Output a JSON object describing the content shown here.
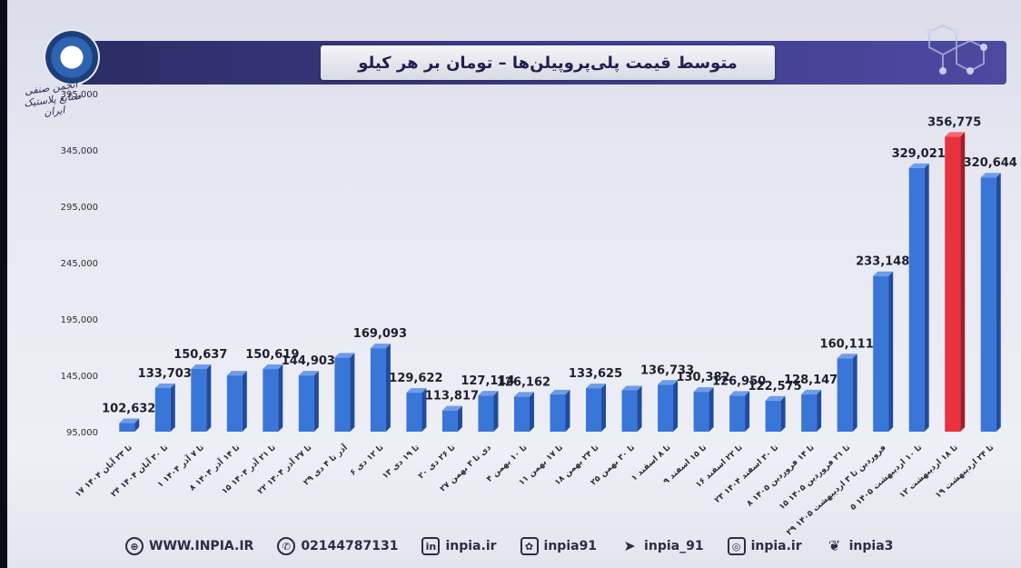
{
  "header": {
    "title": "متوسط قیمت پلی‌پروپیلن‌ها – تومان بر هر کیلو",
    "logo_text": "انجمن صنفی صنایع پلاستیک ایران"
  },
  "chart_data": {
    "type": "bar",
    "title": "متوسط قیمت پلی‌پروپیلن‌ها – تومان بر هر کیلو",
    "xlabel": "",
    "ylabel": "",
    "ylim": [
      95000,
      395000
    ],
    "yticks": [
      "395,000",
      "345,000",
      "295,000",
      "245,000",
      "195,000",
      "145,000",
      "95,000"
    ],
    "ytick_values": [
      395000,
      345000,
      295000,
      245000,
      195000,
      145000,
      95000
    ],
    "grid": false,
    "categories": [
      "۱۷ تا ۲۳ آبان ۱۴۰۴",
      "۲۴ تا ۳۰ آبان ۱۴۰۴",
      "۱ تا ۷ آذر ۱۴۰۴",
      "۸ تا ۱۴ آذر ۱۴۰۴",
      "۱۵ تا ۲۱ آذر ۱۴۰۴",
      "۲۲ تا ۲۷ آذر ۱۴۰۴",
      "۲۹ آذر تا ۴ دی",
      "۶ تا ۱۲ دی",
      "۱۳ تا ۱۹ دی",
      "۲۰ تا ۲۶ دی",
      "۲۷ دی تا ۳ بهمن",
      "۴ تا ۱۰ بهمن",
      "۱۱ تا ۱۷ بهمن",
      "۱۸ تا ۲۴ بهمن",
      "۲۵ تا ۳۰ بهمن",
      "۱ تا ۸ اسفند",
      "۹ تا ۱۵ اسفند",
      "۱۶ تا ۲۲ اسفند",
      "۲۳ تا ۳۰ اسفند ۱۴۰۴",
      "۸ تا ۱۴ فروردین ۱۴۰۵",
      "۱۵ تا ۲۱ فروردین ۱۴۰۵",
      "۲۹ فروردین تا ۳ اردیبهشت ۱۴۰۵",
      "۵ تا ۱۰ اردیبهشت ۱۴۰۵",
      "۱۲ تا ۱۸ اردیبهشت",
      "۱۹ تا ۲۴ اردیبهشت"
    ],
    "values": [
      102632,
      133703,
      150637,
      144900,
      150619,
      144903,
      160800,
      169093,
      129622,
      113817,
      127114,
      126162,
      128200,
      133625,
      131700,
      136733,
      130382,
      126950,
      122575,
      128147,
      160111,
      233148,
      329021,
      356775,
      320644
    ],
    "data_labels": [
      "102,632",
      "133,703",
      "150,637",
      "",
      "150,619",
      "144,903",
      "",
      "169,093",
      "129,622",
      "113,817",
      "127,114",
      "126,162",
      "",
      "133,625",
      "",
      "136,733",
      "130,382",
      "126,950",
      "122,575",
      "128,147",
      "160,111",
      "233,148",
      "329,021",
      "356,775",
      "320,644"
    ],
    "colors": {
      "default": "#3a76d8",
      "highlight": "#e8323e",
      "highlight_index": 23
    }
  },
  "footer": {
    "website": "WWW.INPIA.IR",
    "phone": "02144787131",
    "linkedin": "inpia.ir",
    "aparat": "inpia91",
    "telegram": "inpia_91",
    "instagram": "inpia.ir",
    "twitter": "inpia3",
    "icons": [
      "globe-icon",
      "phone-icon",
      "linkedin-icon",
      "aparat-icon",
      "telegram-icon",
      "instagram-icon",
      "twitter-icon"
    ]
  }
}
